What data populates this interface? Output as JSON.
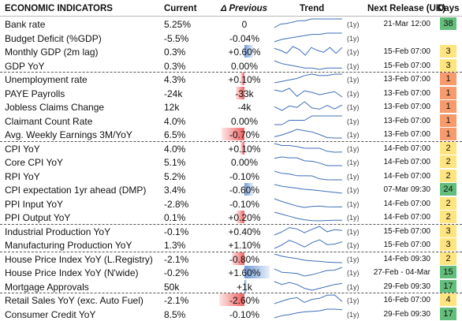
{
  "header": {
    "title": "ECONOMIC INDICATORS",
    "current": "Current",
    "previous": "Δ Previous",
    "trend": "Trend",
    "next_release": "Next Release (UK)",
    "days": "Days"
  },
  "period_label": "(1y)",
  "colors": {
    "neg_bar": "#f06060",
    "pos_bar": "#6f9ad6",
    "days_green": "#63be7b",
    "days_yellow": "#ffe57f",
    "days_orange": "#f8a36d",
    "days_salmon": "#f79a6c",
    "spark_line": "#3f6fb6"
  },
  "rows": [
    {
      "name": "Bank rate",
      "current": "5.25%",
      "prev": "0",
      "prev_level": 0,
      "release": "21-Mar 12:00",
      "days": "38",
      "days_color": "green",
      "trend": [
        4.0,
        4.5,
        4.6,
        4.8,
        5.0,
        5.0,
        5.25,
        5.25,
        5.25,
        5.25,
        5.25,
        5.25
      ]
    },
    {
      "name": "Budget Deficit (%GDP)",
      "current": "-5.5%",
      "prev": "-0.04%",
      "prev_level": 0,
      "release": "",
      "days": "",
      "days_color": "",
      "trend": [
        -6.2,
        -6.0,
        -5.9,
        -5.8,
        -5.7,
        -5.6,
        -5.6,
        -5.5,
        -5.5,
        -5.5
      ]
    },
    {
      "name": "Monthly GDP (2m lag)",
      "current": "0.3%",
      "prev": "+0.60%",
      "prev_level": 0.35,
      "release": "15-Feb 07:00",
      "days": "3",
      "days_color": "yellow",
      "trend": [
        0.2,
        0.0,
        -0.3,
        0.4,
        0.1,
        -0.5,
        0.3,
        0.0,
        -0.2,
        0.3,
        -0.3,
        0.3
      ]
    },
    {
      "name": "GDP YoY",
      "current": "0.3%",
      "prev": "0.00%",
      "prev_level": 0,
      "release": "15-Feb 07:00",
      "days": "3",
      "days_color": "yellow",
      "trend": [
        0.8,
        0.6,
        0.5,
        0.4,
        0.3,
        0.3,
        0.2,
        0.3,
        0.3,
        0.3
      ]
    },
    {
      "name": "Unemployment rate",
      "current": "4.3%",
      "prev": "+0.10%",
      "prev_level": -0.15,
      "release": "13-Feb 07:00",
      "days": "1",
      "days_color": "salmon",
      "trend": [
        3.7,
        3.8,
        3.9,
        4.0,
        4.2,
        4.3,
        4.2,
        4.2,
        4.3,
        4.3
      ]
    },
    {
      "name": "PAYE Payrolls",
      "current": "-24k",
      "prev": "-33k",
      "prev_level": -0.35,
      "release": "13-Feb 07:00",
      "days": "1",
      "days_color": "salmon",
      "trend": [
        20,
        10,
        30,
        -20,
        15,
        5,
        -10,
        0,
        10,
        -24
      ]
    },
    {
      "name": "Jobless Claims Change",
      "current": "12k",
      "prev": "-4k",
      "prev_level": 0,
      "release": "13-Feb 07:00",
      "days": "1",
      "days_color": "salmon",
      "trend": [
        5,
        -10,
        8,
        2,
        25,
        0,
        -5,
        10,
        -4,
        12
      ]
    },
    {
      "name": "Claimant Count Rate",
      "current": "4.0%",
      "prev": "0.00%",
      "prev_level": 0,
      "release": "13-Feb 07:00",
      "days": "1",
      "days_color": "salmon",
      "trend": [
        3.8,
        3.8,
        3.9,
        3.9,
        3.9,
        4.0,
        4.0,
        4.0,
        4.0,
        4.0
      ]
    },
    {
      "name": "Avg. Weekly Earnings 3M/YoY",
      "current": "6.5%",
      "prev": "-0.70%",
      "prev_level": -0.9,
      "release": "13-Feb 07:00",
      "days": "1",
      "days_color": "salmon",
      "trend": [
        6.8,
        7.2,
        7.8,
        8.5,
        8.2,
        7.9,
        7.3,
        6.6,
        6.5,
        6.5
      ]
    },
    {
      "name": "CPI YoY",
      "current": "4.0%",
      "prev": "+0.10%",
      "prev_level": -0.15,
      "release": "14-Feb 07:00",
      "days": "2",
      "days_color": "yellow",
      "trend": [
        10.1,
        8.7,
        8.7,
        7.9,
        6.8,
        6.7,
        6.7,
        4.6,
        3.9,
        4.0
      ]
    },
    {
      "name": "Core CPI YoY",
      "current": "5.1%",
      "prev": "0.00%",
      "prev_level": 0,
      "release": "14-Feb 07:00",
      "days": "2",
      "days_color": "yellow",
      "trend": [
        6.8,
        7.1,
        6.9,
        6.9,
        6.2,
        6.1,
        5.7,
        5.1,
        5.1,
        5.1
      ]
    },
    {
      "name": "RPI YoY",
      "current": "5.2%",
      "prev": "-0.10%",
      "prev_level": 0,
      "release": "14-Feb 07:00",
      "days": "2",
      "days_color": "yellow",
      "trend": [
        13.4,
        11.3,
        10.7,
        9.1,
        9.0,
        8.9,
        6.1,
        5.3,
        5.2,
        5.2
      ]
    },
    {
      "name": "CPI expectation 1yr ahead (DMP)",
      "current": "3.4%",
      "prev": "-0.60%",
      "prev_level": 0.35,
      "release": "07-Mar 09:30",
      "days": "24",
      "days_color": "green",
      "trend": [
        6.5,
        5.9,
        5.5,
        5.2,
        4.8,
        4.6,
        4.3,
        4.0,
        3.7,
        3.4
      ]
    },
    {
      "name": "PPI Input YoY",
      "current": "-2.8%",
      "prev": "-0.10%",
      "prev_level": 0,
      "release": "14-Feb 07:00",
      "days": "2",
      "days_color": "yellow",
      "trend": [
        6.0,
        3.0,
        0.5,
        -2.0,
        -3.5,
        -2.5,
        -2.0,
        -2.8,
        -3.0,
        -2.8
      ]
    },
    {
      "name": "PPI Output YoY",
      "current": "0.1%",
      "prev": "+0.20%",
      "prev_level": -0.3,
      "release": "14-Feb 07:00",
      "days": "2",
      "days_color": "yellow",
      "trend": [
        6.0,
        4.5,
        3.0,
        1.5,
        0.5,
        -0.2,
        -0.3,
        0.0,
        0.1,
        0.1
      ]
    },
    {
      "name": "Industrial Production YoY",
      "current": "-0.1%",
      "prev": "+0.40%",
      "prev_level": 0,
      "release": "15-Feb 07:00",
      "days": "3",
      "days_color": "yellow",
      "trend": [
        -1.5,
        -0.5,
        0.8,
        0.4,
        -0.8,
        0.3,
        1.2,
        -0.5,
        0.2,
        -0.1
      ]
    },
    {
      "name": "Manufacturing Production YoY",
      "current": "1.3%",
      "prev": "+1.10%",
      "prev_level": 0,
      "release": "15-Feb 07:00",
      "days": "3",
      "days_color": "yellow",
      "trend": [
        -1.0,
        0.2,
        1.8,
        0.8,
        -0.5,
        1.0,
        2.0,
        0.3,
        0.5,
        1.3
      ]
    },
    {
      "name": "House Price Index YoY (L.Registry)",
      "current": "-2.1%",
      "prev": "-0.80%",
      "prev_level": -0.5,
      "release": "14-Feb 09:30",
      "days": "2",
      "days_color": "yellow",
      "trend": [
        3.5,
        2.0,
        1.2,
        0.5,
        -0.5,
        -1.0,
        -1.3,
        -1.8,
        -2.0,
        -2.1
      ]
    },
    {
      "name": "House Price Index YoY (N'wide)",
      "current": "-0.2%",
      "prev": "+1.60%",
      "prev_level": 1.0,
      "release": "27-Feb - 04-Mar",
      "days": "15",
      "days_color": "green",
      "trend": [
        -1.1,
        -3.1,
        -3.4,
        -3.8,
        -5.3,
        -4.5,
        -3.3,
        -2.0,
        -1.8,
        -0.2
      ]
    },
    {
      "name": "Mortgage Approvals",
      "current": "50k",
      "prev": "+1k",
      "prev_level": 0.1,
      "release": "29-Feb 09:30",
      "days": "17",
      "days_color": "green",
      "trend": [
        52,
        49,
        51,
        49,
        45,
        43,
        45,
        47,
        49,
        50
      ]
    },
    {
      "name": "Retail Sales YoY (exc. Auto Fuel)",
      "current": "-2.1%",
      "prev": "-2.60%",
      "prev_level": -1.0,
      "release": "16-Feb 07:00",
      "days": "4",
      "days_color": "yellow",
      "trend": [
        -3.0,
        -2.0,
        -1.0,
        -0.5,
        -2.5,
        -1.2,
        -0.8,
        0.5,
        0.6,
        -2.1
      ]
    },
    {
      "name": "Consumer Credit YoY",
      "current": "8.5%",
      "prev": "-0.10%",
      "prev_level": 0,
      "release": "29-Feb 09:30",
      "days": "17",
      "days_color": "green",
      "trend": [
        7.0,
        7.4,
        7.6,
        7.9,
        8.1,
        8.2,
        8.3,
        8.6,
        8.6,
        8.5
      ]
    }
  ]
}
